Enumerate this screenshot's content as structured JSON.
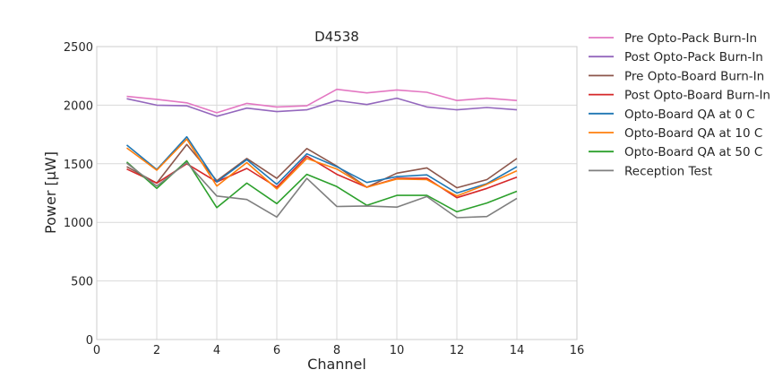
{
  "chart_data": {
    "type": "line",
    "title": "D4538",
    "xlabel": "Channel",
    "ylabel": "Power [μW]",
    "xlim": [
      0,
      16
    ],
    "ylim": [
      0,
      2500
    ],
    "xticks": [
      0,
      2,
      4,
      6,
      8,
      10,
      12,
      14,
      16
    ],
    "yticks": [
      0,
      500,
      1000,
      1500,
      2000,
      2500
    ],
    "grid": true,
    "legend_position": "outside-right",
    "x": [
      1,
      2,
      3,
      4,
      5,
      6,
      7,
      8,
      9,
      10,
      11,
      12,
      13,
      14
    ],
    "series": [
      {
        "name": "Pre Opto-Pack Burn-In",
        "color": "#e377c2",
        "values": [
          2075,
          2050,
          2020,
          1935,
          2015,
          1985,
          1995,
          2135,
          2105,
          2130,
          2110,
          2040,
          2060,
          2040
        ]
      },
      {
        "name": "Post Opto-Pack Burn-In",
        "color": "#9467bd",
        "values": [
          2055,
          2000,
          1995,
          1905,
          1975,
          1945,
          1960,
          2040,
          2005,
          2060,
          1985,
          1960,
          1980,
          1960
        ]
      },
      {
        "name": "Pre Opto-Board Burn-In",
        "color": "#8c564b",
        "values": [
          1475,
          1335,
          1665,
          1355,
          1545,
          1375,
          1630,
          1480,
          1300,
          1420,
          1465,
          1295,
          1365,
          1545
        ]
      },
      {
        "name": "Post Opto-Board Burn-In",
        "color": "#d62728",
        "values": [
          1455,
          1335,
          1500,
          1345,
          1460,
          1300,
          1565,
          1410,
          1300,
          1375,
          1375,
          1210,
          1290,
          1385
        ]
      },
      {
        "name": "Opto-Board QA at 0 C",
        "color": "#1f77b4",
        "values": [
          1660,
          1450,
          1730,
          1345,
          1535,
          1325,
          1585,
          1475,
          1340,
          1390,
          1405,
          1250,
          1330,
          1475
        ]
      },
      {
        "name": "Opto-Board QA at 10 C",
        "color": "#ff7f0e",
        "values": [
          1635,
          1445,
          1710,
          1310,
          1510,
          1285,
          1545,
          1455,
          1300,
          1370,
          1365,
          1225,
          1325,
          1440
        ]
      },
      {
        "name": "Opto-Board QA at 50 C",
        "color": "#2ca02c",
        "values": [
          1515,
          1290,
          1525,
          1125,
          1335,
          1160,
          1410,
          1305,
          1145,
          1230,
          1230,
          1090,
          1165,
          1265
        ]
      },
      {
        "name": "Reception Test",
        "color": "#7f7f7f",
        "values": [
          1505,
          1310,
          1510,
          1225,
          1195,
          1045,
          1375,
          1135,
          1140,
          1130,
          1220,
          1040,
          1050,
          1205
        ]
      }
    ]
  }
}
